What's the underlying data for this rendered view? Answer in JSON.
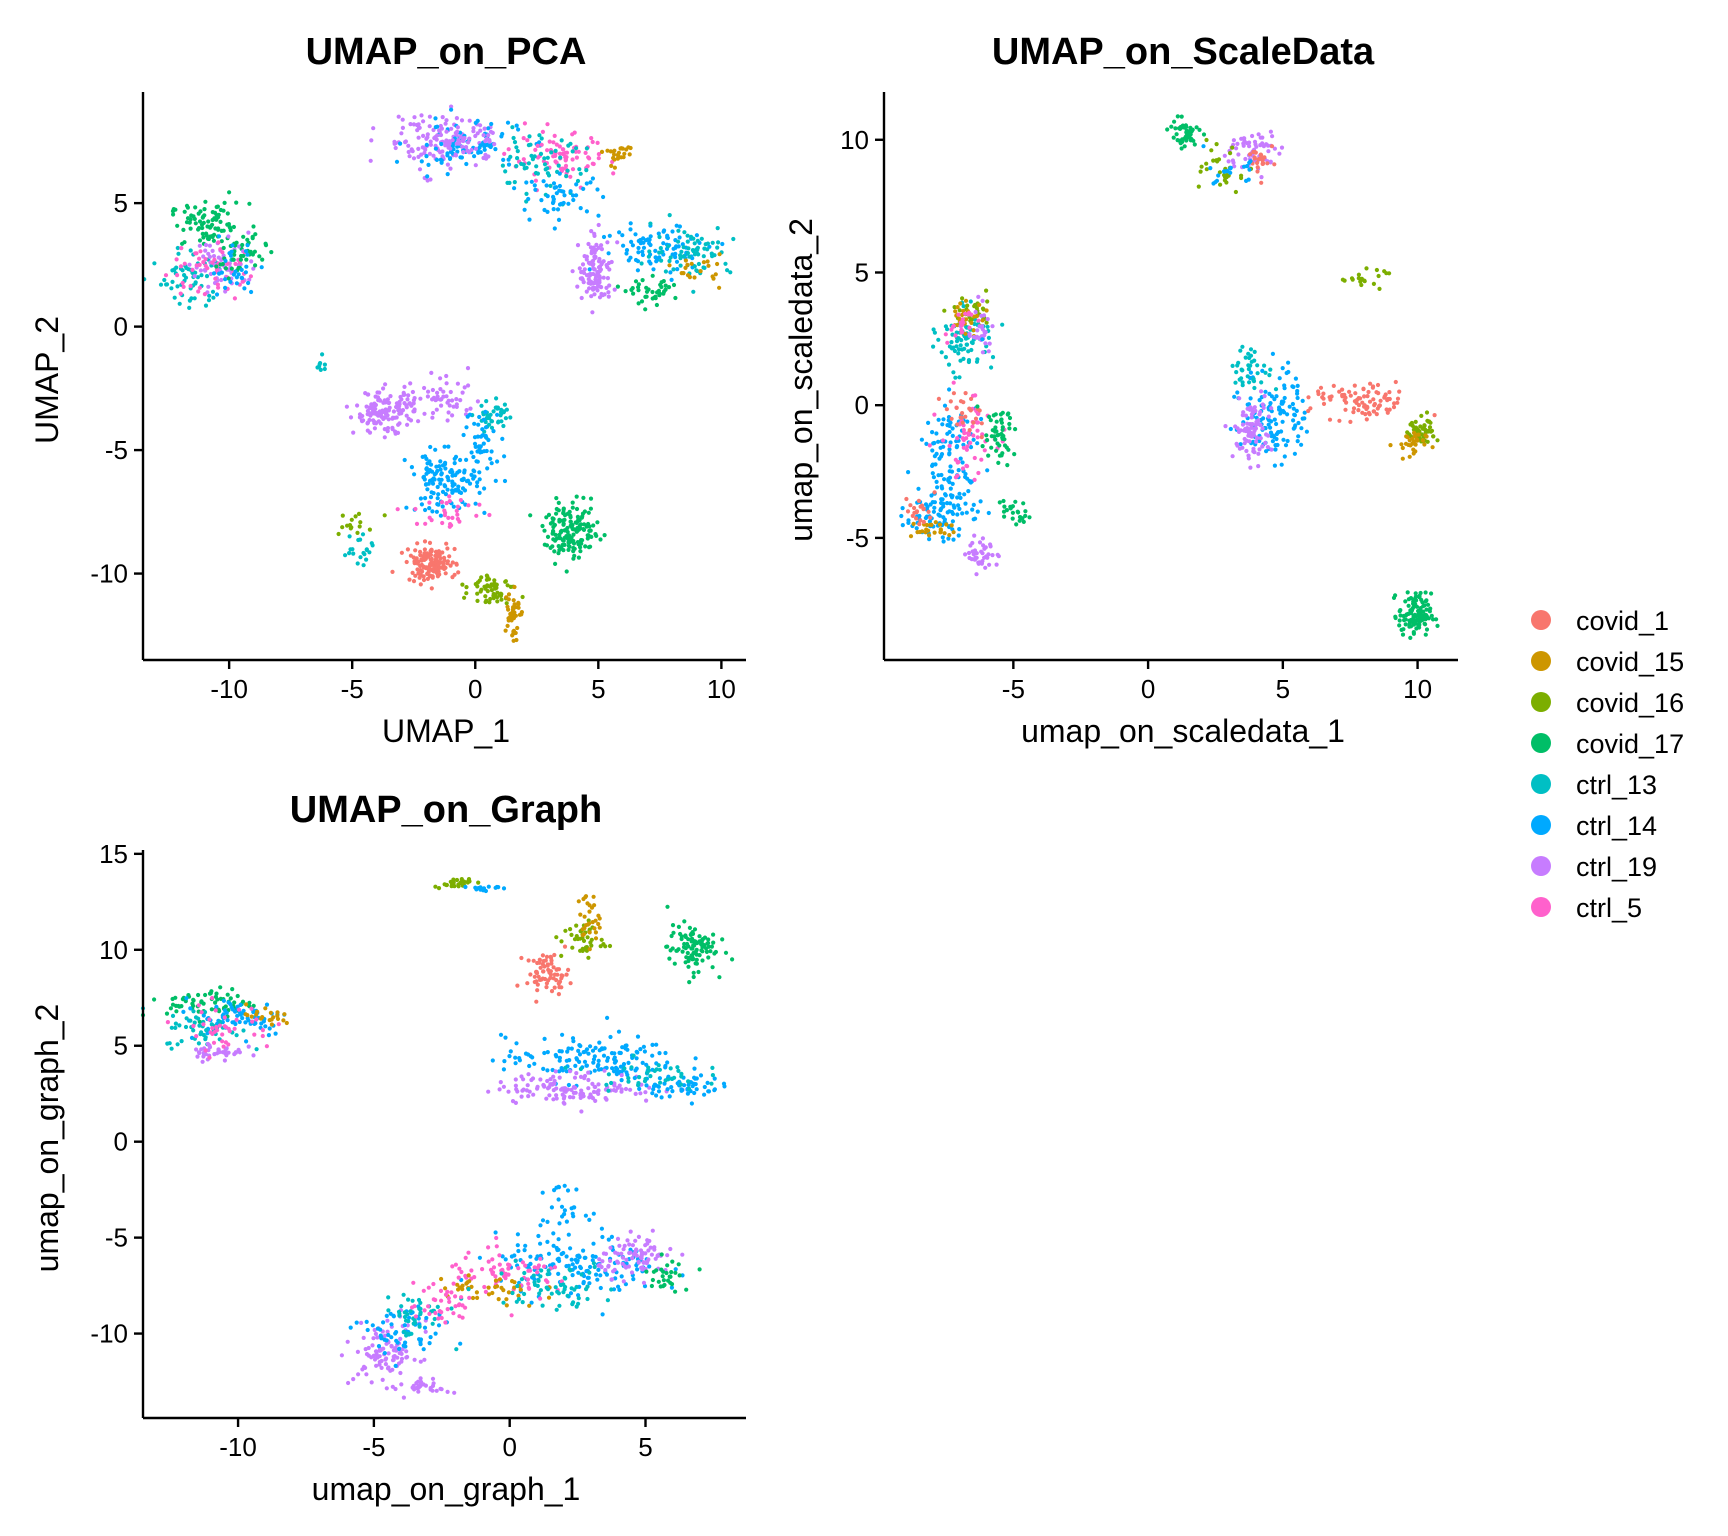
{
  "chart_data": [
    {
      "type": "scatter",
      "title": "UMAP_on_PCA",
      "xlabel": "UMAP_1",
      "ylabel": "UMAP_2",
      "xlim": [
        -13.5,
        11
      ],
      "ylim": [
        -13.5,
        9.5
      ],
      "xticks": [
        -10,
        -5,
        0,
        5,
        10
      ],
      "yticks": [
        -10,
        -5,
        0,
        5
      ],
      "clusters": [
        {
          "sample": "covid_17",
          "x": -10.8,
          "y": 4.1,
          "sx": 0.8,
          "sy": 0.45,
          "n": 90
        },
        {
          "sample": "ctrl_13",
          "x": -11.5,
          "y": 2.0,
          "sx": 0.6,
          "sy": 0.6,
          "n": 60
        },
        {
          "sample": "ctrl_19",
          "x": -10.2,
          "y": 2.6,
          "sx": 0.7,
          "sy": 0.6,
          "n": 60
        },
        {
          "sample": "ctrl_5",
          "x": -11.0,
          "y": 2.3,
          "sx": 0.8,
          "sy": 0.6,
          "n": 50
        },
        {
          "sample": "covid_17",
          "x": -9.5,
          "y": 2.9,
          "sx": 0.5,
          "sy": 0.4,
          "n": 40
        },
        {
          "sample": "ctrl_14",
          "x": -9.8,
          "y": 2.3,
          "sx": 0.5,
          "sy": 0.5,
          "n": 30
        },
        {
          "sample": "ctrl_19",
          "x": -2.0,
          "y": 7.5,
          "sx": 0.9,
          "sy": 0.6,
          "n": 90
        },
        {
          "sample": "ctrl_14",
          "x": -0.5,
          "y": 7.3,
          "sx": 1.2,
          "sy": 0.5,
          "n": 90
        },
        {
          "sample": "ctrl_19",
          "x": -0.3,
          "y": 7.6,
          "sx": 0.6,
          "sy": 0.4,
          "n": 60
        },
        {
          "sample": "ctrl_5",
          "x": 3.5,
          "y": 6.8,
          "sx": 1.0,
          "sy": 0.5,
          "n": 80
        },
        {
          "sample": "ctrl_13",
          "x": 2.5,
          "y": 6.5,
          "sx": 1.0,
          "sy": 0.6,
          "n": 60
        },
        {
          "sample": "covid_15",
          "x": 5.8,
          "y": 7.0,
          "sx": 0.3,
          "sy": 0.3,
          "n": 25
        },
        {
          "sample": "ctrl_14",
          "x": 3.5,
          "y": 5.3,
          "sx": 0.8,
          "sy": 0.4,
          "n": 50
        },
        {
          "sample": "ctrl_14",
          "x": 7.5,
          "y": 3.2,
          "sx": 1.2,
          "sy": 0.5,
          "n": 90
        },
        {
          "sample": "ctrl_13",
          "x": 8.8,
          "y": 3.1,
          "sx": 0.8,
          "sy": 0.5,
          "n": 70
        },
        {
          "sample": "ctrl_19",
          "x": 4.9,
          "y": 2.2,
          "sx": 0.35,
          "sy": 0.7,
          "n": 120
        },
        {
          "sample": "covid_17",
          "x": 7.3,
          "y": 1.4,
          "sx": 0.5,
          "sy": 0.25,
          "n": 40
        },
        {
          "sample": "covid_15",
          "x": 9.0,
          "y": 2.3,
          "sx": 0.5,
          "sy": 0.3,
          "n": 20
        },
        {
          "sample": "ctrl_13",
          "x": -6.3,
          "y": -1.4,
          "sx": 0.15,
          "sy": 0.2,
          "n": 8
        },
        {
          "sample": "ctrl_19",
          "x": -3.7,
          "y": -3.5,
          "sx": 0.6,
          "sy": 0.4,
          "n": 130
        },
        {
          "sample": "ctrl_19",
          "x": -1.5,
          "y": -3.0,
          "sx": 1.0,
          "sy": 0.4,
          "n": 60
        },
        {
          "sample": "ctrl_13",
          "x": 0.8,
          "y": -3.7,
          "sx": 0.4,
          "sy": 0.4,
          "n": 40
        },
        {
          "sample": "ctrl_14",
          "x": -1.3,
          "y": -6.3,
          "sx": 0.7,
          "sy": 0.6,
          "n": 130
        },
        {
          "sample": "ctrl_14",
          "x": 0.3,
          "y": -4.8,
          "sx": 0.4,
          "sy": 0.8,
          "n": 50
        },
        {
          "sample": "ctrl_5",
          "x": -1.0,
          "y": -7.5,
          "sx": 0.7,
          "sy": 0.4,
          "n": 30
        },
        {
          "sample": "covid_17",
          "x": 3.9,
          "y": -8.3,
          "sx": 0.55,
          "sy": 0.55,
          "n": 150
        },
        {
          "sample": "covid_1",
          "x": -1.8,
          "y": -9.6,
          "sx": 0.5,
          "sy": 0.35,
          "n": 140
        },
        {
          "sample": "covid_16",
          "x": 0.7,
          "y": -10.6,
          "sx": 0.45,
          "sy": 0.3,
          "n": 60
        },
        {
          "sample": "covid_15",
          "x": 1.5,
          "y": -11.5,
          "sx": 0.15,
          "sy": 0.6,
          "n": 40
        },
        {
          "sample": "ctrl_13",
          "x": -4.8,
          "y": -9.0,
          "sx": 0.4,
          "sy": 0.4,
          "n": 20
        },
        {
          "sample": "covid_16",
          "x": -5.0,
          "y": -8.0,
          "sx": 0.4,
          "sy": 0.3,
          "n": 15
        }
      ]
    },
    {
      "type": "scatter",
      "title": "UMAP_on_ScaleData",
      "xlabel": "umap_on_scaledata_1",
      "ylabel": "umap_on_scaledata_2",
      "xlim": [
        -9.8,
        11.5
      ],
      "ylim": [
        -9.6,
        11.8
      ],
      "xticks": [
        -5,
        0,
        5,
        10
      ],
      "yticks": [
        -5,
        0,
        5,
        10
      ],
      "clusters": [
        {
          "sample": "covid_17",
          "x": 1.3,
          "y": 10.2,
          "sx": 0.3,
          "sy": 0.3,
          "n": 50
        },
        {
          "sample": "ctrl_19",
          "x": 3.9,
          "y": 9.6,
          "sx": 0.5,
          "sy": 0.4,
          "n": 60
        },
        {
          "sample": "covid_1",
          "x": 4.3,
          "y": 9.2,
          "sx": 0.3,
          "sy": 0.3,
          "n": 25
        },
        {
          "sample": "covid_16",
          "x": 2.8,
          "y": 8.8,
          "sx": 0.4,
          "sy": 0.4,
          "n": 30
        },
        {
          "sample": "ctrl_14",
          "x": 3.0,
          "y": 8.8,
          "sx": 0.4,
          "sy": 0.3,
          "n": 20
        },
        {
          "sample": "covid_16",
          "x": 8.0,
          "y": 4.8,
          "sx": 0.4,
          "sy": 0.15,
          "n": 20
        },
        {
          "sample": "ctrl_13",
          "x": -6.8,
          "y": 2.5,
          "sx": 0.5,
          "sy": 0.6,
          "n": 80
        },
        {
          "sample": "covid_16",
          "x": -6.6,
          "y": 3.5,
          "sx": 0.4,
          "sy": 0.3,
          "n": 30
        },
        {
          "sample": "covid_15",
          "x": -6.8,
          "y": 3.3,
          "sx": 0.4,
          "sy": 0.3,
          "n": 25
        },
        {
          "sample": "ctrl_19",
          "x": -6.2,
          "y": 2.8,
          "sx": 0.25,
          "sy": 0.5,
          "n": 30
        },
        {
          "sample": "ctrl_5",
          "x": -7.0,
          "y": 3.0,
          "sx": 0.3,
          "sy": 0.4,
          "n": 20
        },
        {
          "sample": "ctrl_14",
          "x": -7.3,
          "y": -1.8,
          "sx": 0.6,
          "sy": 1.0,
          "n": 100
        },
        {
          "sample": "ctrl_5",
          "x": -6.7,
          "y": -1.2,
          "sx": 0.5,
          "sy": 0.8,
          "n": 60
        },
        {
          "sample": "covid_1",
          "x": -6.8,
          "y": -0.3,
          "sx": 0.4,
          "sy": 0.4,
          "n": 25
        },
        {
          "sample": "covid_17",
          "x": -5.6,
          "y": -1.2,
          "sx": 0.35,
          "sy": 0.5,
          "n": 50
        },
        {
          "sample": "covid_17",
          "x": -4.9,
          "y": -4.0,
          "sx": 0.25,
          "sy": 0.3,
          "n": 25
        },
        {
          "sample": "ctrl_14",
          "x": -7.8,
          "y": -4.0,
          "sx": 0.6,
          "sy": 0.5,
          "n": 90
        },
        {
          "sample": "covid_15",
          "x": -8.0,
          "y": -4.7,
          "sx": 0.4,
          "sy": 0.2,
          "n": 25
        },
        {
          "sample": "ctrl_19",
          "x": -6.1,
          "y": -5.6,
          "sx": 0.3,
          "sy": 0.3,
          "n": 40
        },
        {
          "sample": "covid_1",
          "x": -8.5,
          "y": -4.0,
          "sx": 0.3,
          "sy": 0.3,
          "n": 20
        },
        {
          "sample": "ctrl_14",
          "x": 4.7,
          "y": -0.3,
          "sx": 0.6,
          "sy": 0.9,
          "n": 130
        },
        {
          "sample": "ctrl_13",
          "x": 3.8,
          "y": 1.3,
          "sx": 0.4,
          "sy": 0.4,
          "n": 40
        },
        {
          "sample": "ctrl_19",
          "x": 3.9,
          "y": -0.9,
          "sx": 0.35,
          "sy": 0.6,
          "n": 90
        },
        {
          "sample": "covid_1",
          "x": 7.9,
          "y": 0.1,
          "sx": 0.9,
          "sy": 0.35,
          "n": 90
        },
        {
          "sample": "covid_16",
          "x": 10.2,
          "y": -1.0,
          "sx": 0.25,
          "sy": 0.3,
          "n": 50
        },
        {
          "sample": "covid_15",
          "x": 9.7,
          "y": -1.5,
          "sx": 0.3,
          "sy": 0.3,
          "n": 30
        },
        {
          "sample": "covid_17",
          "x": 9.9,
          "y": -7.9,
          "sx": 0.3,
          "sy": 0.4,
          "n": 120
        }
      ]
    },
    {
      "type": "scatter",
      "title": "UMAP_on_Graph",
      "xlabel": "umap_on_graph_1",
      "ylabel": "umap_on_graph_2",
      "xlim": [
        -13.5,
        8.7
      ],
      "ylim": [
        -14.4,
        15.2
      ],
      "xticks": [
        -10,
        -5,
        0,
        5
      ],
      "yticks": [
        -10,
        -5,
        0,
        5,
        10,
        15
      ],
      "clusters": [
        {
          "sample": "covid_17",
          "x": -11.0,
          "y": 7.2,
          "sx": 0.8,
          "sy": 0.4,
          "n": 70
        },
        {
          "sample": "ctrl_14",
          "x": -10.0,
          "y": 6.5,
          "sx": 1.0,
          "sy": 0.5,
          "n": 70
        },
        {
          "sample": "ctrl_13",
          "x": -11.3,
          "y": 5.9,
          "sx": 0.7,
          "sy": 0.5,
          "n": 50
        },
        {
          "sample": "ctrl_19",
          "x": -10.8,
          "y": 4.7,
          "sx": 0.5,
          "sy": 0.25,
          "n": 40
        },
        {
          "sample": "ctrl_5",
          "x": -10.5,
          "y": 6.0,
          "sx": 0.9,
          "sy": 0.6,
          "n": 40
        },
        {
          "sample": "covid_15",
          "x": -9.0,
          "y": 6.5,
          "sx": 0.5,
          "sy": 0.3,
          "n": 20
        },
        {
          "sample": "covid_16",
          "x": -2.0,
          "y": 13.5,
          "sx": 0.4,
          "sy": 0.12,
          "n": 30
        },
        {
          "sample": "ctrl_14",
          "x": -1.0,
          "y": 13.2,
          "sx": 0.3,
          "sy": 0.1,
          "n": 15
        },
        {
          "sample": "covid_1",
          "x": 1.4,
          "y": 8.8,
          "sx": 0.4,
          "sy": 0.5,
          "n": 70
        },
        {
          "sample": "covid_16",
          "x": 2.7,
          "y": 10.5,
          "sx": 0.4,
          "sy": 0.5,
          "n": 40
        },
        {
          "sample": "covid_15",
          "x": 2.9,
          "y": 11.6,
          "sx": 0.2,
          "sy": 0.7,
          "n": 30
        },
        {
          "sample": "covid_17",
          "x": 6.7,
          "y": 10.1,
          "sx": 0.45,
          "sy": 0.6,
          "n": 100
        },
        {
          "sample": "ctrl_14",
          "x": 3.0,
          "y": 4.3,
          "sx": 1.6,
          "sy": 0.6,
          "n": 150
        },
        {
          "sample": "ctrl_19",
          "x": 2.5,
          "y": 2.8,
          "sx": 1.5,
          "sy": 0.4,
          "n": 130
        },
        {
          "sample": "ctrl_14",
          "x": 6.2,
          "y": 2.9,
          "sx": 0.8,
          "sy": 0.3,
          "n": 60
        },
        {
          "sample": "ctrl_13",
          "x": 5.0,
          "y": 3.5,
          "sx": 1.0,
          "sy": 0.4,
          "n": 40
        },
        {
          "sample": "ctrl_14",
          "x": 2.5,
          "y": -6.5,
          "sx": 1.5,
          "sy": 0.8,
          "n": 150
        },
        {
          "sample": "ctrl_19",
          "x": 4.7,
          "y": -6.0,
          "sx": 0.7,
          "sy": 0.5,
          "n": 90
        },
        {
          "sample": "ctrl_5",
          "x": 0.0,
          "y": -7.0,
          "sx": 1.2,
          "sy": 0.6,
          "n": 70
        },
        {
          "sample": "covid_15",
          "x": -0.8,
          "y": -7.8,
          "sx": 1.0,
          "sy": 0.5,
          "n": 40
        },
        {
          "sample": "ctrl_13",
          "x": 1.5,
          "y": -7.5,
          "sx": 1.2,
          "sy": 0.6,
          "n": 60
        },
        {
          "sample": "covid_17",
          "x": 5.8,
          "y": -6.9,
          "sx": 0.4,
          "sy": 0.4,
          "n": 30
        },
        {
          "sample": "ctrl_14",
          "x": 1.8,
          "y": -3.5,
          "sx": 0.5,
          "sy": 0.6,
          "n": 30
        },
        {
          "sample": "ctrl_19",
          "x": -4.5,
          "y": -11.0,
          "sx": 0.6,
          "sy": 0.8,
          "n": 100
        },
        {
          "sample": "ctrl_14",
          "x": -4.0,
          "y": -10.0,
          "sx": 0.8,
          "sy": 0.7,
          "n": 60
        },
        {
          "sample": "ctrl_13",
          "x": -3.5,
          "y": -9.0,
          "sx": 0.6,
          "sy": 0.6,
          "n": 40
        },
        {
          "sample": "ctrl_5",
          "x": -2.5,
          "y": -8.5,
          "sx": 0.6,
          "sy": 0.6,
          "n": 40
        },
        {
          "sample": "ctrl_19",
          "x": -3.0,
          "y": -12.8,
          "sx": 0.4,
          "sy": 0.2,
          "n": 30
        }
      ]
    }
  ],
  "legend": {
    "position": "right",
    "entries": [
      {
        "label": "covid_1",
        "color": "#F8766D"
      },
      {
        "label": "covid_15",
        "color": "#CD9600"
      },
      {
        "label": "covid_16",
        "color": "#7CAE00"
      },
      {
        "label": "covid_17",
        "color": "#00BE67"
      },
      {
        "label": "ctrl_13",
        "color": "#00BFC4"
      },
      {
        "label": "ctrl_14",
        "color": "#00A9FF"
      },
      {
        "label": "ctrl_19",
        "color": "#C77CFF"
      },
      {
        "label": "ctrl_5",
        "color": "#FF61CC"
      }
    ]
  }
}
